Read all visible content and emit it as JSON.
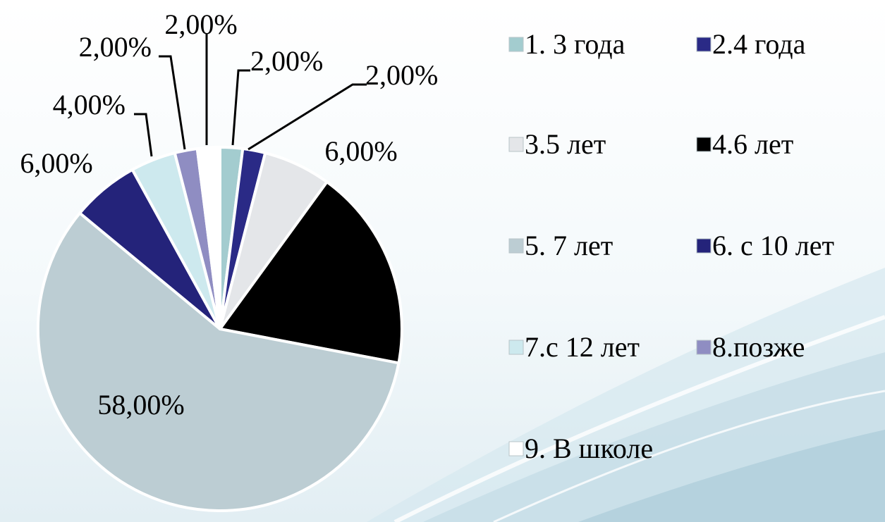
{
  "chart_data": {
    "type": "pie",
    "categories": [
      "1. 3 года",
      "2.4 года",
      "3.5 лет",
      "4.6 лет",
      "5. 7 лет",
      "6. с 10 лет",
      "7.с 12 лет",
      "8.позже",
      "9. В школе"
    ],
    "values": [
      2,
      2,
      6,
      18,
      58,
      6,
      4,
      2,
      2
    ],
    "data_labels": [
      "2,00%",
      "2,00%",
      "6,00%",
      "",
      "58,00%",
      "6,00%",
      "4,00%",
      "2,00%",
      "2,00%"
    ],
    "colors": [
      "#a3cccf",
      "#2a2a86",
      "#e4e6e9",
      "#000000",
      "#bccdd3",
      "#24237a",
      "#cde9ee",
      "#8f8dc2",
      "#ffffff"
    ],
    "legend_position": "right"
  }
}
